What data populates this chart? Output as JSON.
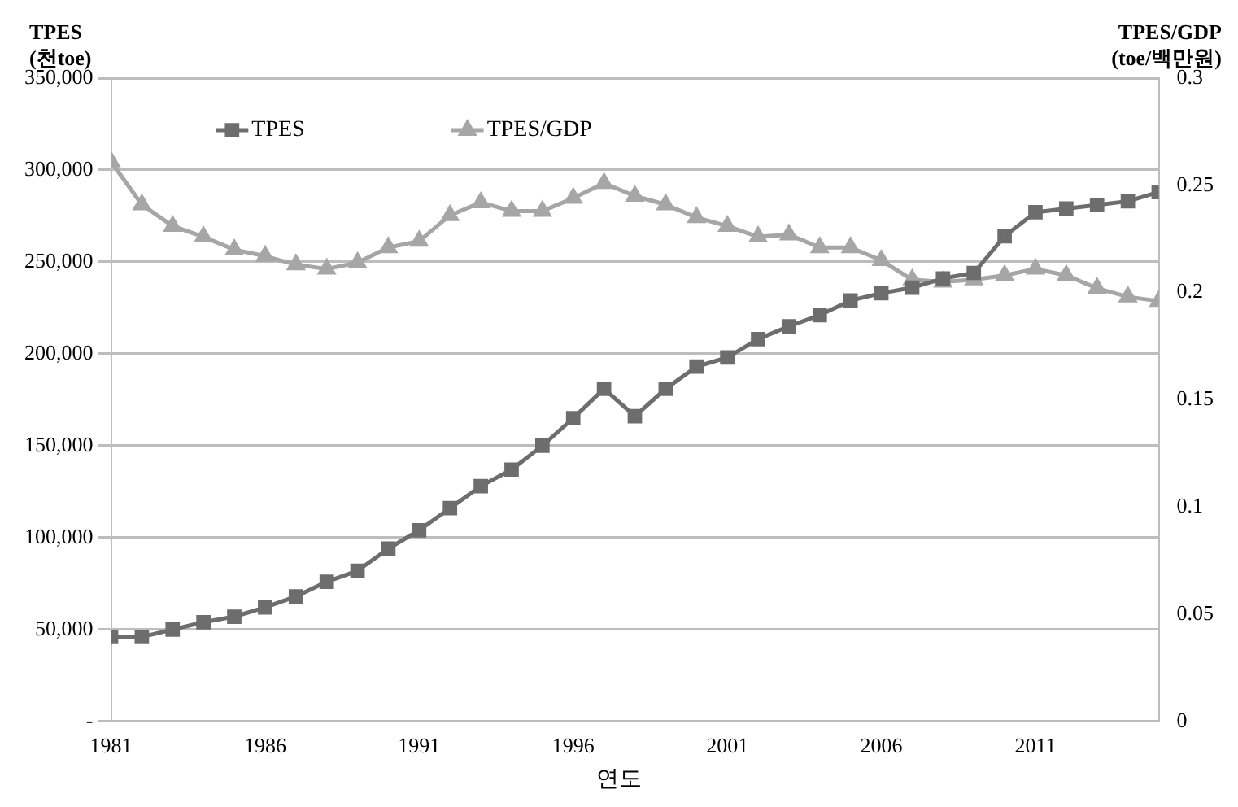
{
  "chart_data": {
    "type": "line",
    "ylabel": "TPES\n(천toe)",
    "y2label": "TPES/GDP\n(toe/백만원)",
    "xlabel": "연도",
    "x": [
      1981,
      1982,
      1983,
      1984,
      1985,
      1986,
      1987,
      1988,
      1989,
      1990,
      1991,
      1992,
      1993,
      1994,
      1995,
      1996,
      1997,
      1998,
      1999,
      2000,
      2001,
      2002,
      2003,
      2004,
      2005,
      2006,
      2007,
      2008,
      2009,
      2010,
      2011,
      2012,
      2013,
      2014,
      2015
    ],
    "xlim": [
      1981,
      2015
    ],
    "xticks": [
      1981,
      1986,
      1991,
      1996,
      2001,
      2006,
      2011
    ],
    "ylim": [
      0,
      350000
    ],
    "yticks": [
      {
        "value": 0,
        "label": "-"
      },
      {
        "value": 50000,
        "label": "50,000"
      },
      {
        "value": 100000,
        "label": "100,000"
      },
      {
        "value": 150000,
        "label": "150,000"
      },
      {
        "value": 200000,
        "label": "200,000"
      },
      {
        "value": 250000,
        "label": "250,000"
      },
      {
        "value": 300000,
        "label": "300,000"
      },
      {
        "value": 350000,
        "label": "350,000"
      }
    ],
    "y2lim": [
      0,
      0.3
    ],
    "y2ticks": [
      0,
      0.05,
      0.1,
      0.15,
      0.2,
      0.25,
      0.3
    ],
    "series": [
      {
        "name": "TPES",
        "color": "#6d6d6d",
        "marker": "square",
        "values": [
          46000,
          46000,
          50000,
          54000,
          57000,
          62000,
          68000,
          76000,
          82000,
          94000,
          104000,
          116000,
          128000,
          137000,
          150000,
          165000,
          181000,
          166000,
          181000,
          193000,
          198000,
          208000,
          215000,
          221000,
          229000,
          233000,
          236000,
          241000,
          244000,
          264000,
          277000,
          279000,
          281000,
          283000,
          288000
        ]
      },
      {
        "name": "TPES/GDP",
        "color": "#a6a6a6",
        "marker": "triangle",
        "axis": "y2",
        "values": [
          0.261,
          0.241,
          0.231,
          0.226,
          0.22,
          0.217,
          0.213,
          0.211,
          0.214,
          0.221,
          0.224,
          0.236,
          0.242,
          0.238,
          0.238,
          0.244,
          0.251,
          0.245,
          0.241,
          0.235,
          0.231,
          0.226,
          0.227,
          0.221,
          0.221,
          0.215,
          0.206,
          0.205,
          0.206,
          0.208,
          0.211,
          0.208,
          0.202,
          0.198,
          0.196
        ]
      }
    ],
    "grid": "y",
    "legend": "top",
    "line_style": "solid"
  }
}
